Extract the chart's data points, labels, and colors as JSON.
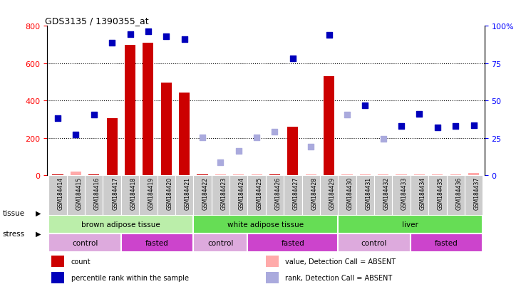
{
  "title": "GDS3135 / 1390355_at",
  "samples": [
    "GSM184414",
    "GSM184415",
    "GSM184416",
    "GSM184417",
    "GSM184418",
    "GSM184419",
    "GSM184420",
    "GSM184421",
    "GSM184422",
    "GSM184423",
    "GSM184424",
    "GSM184425",
    "GSM184426",
    "GSM184427",
    "GSM184428",
    "GSM184429",
    "GSM184430",
    "GSM184431",
    "GSM184432",
    "GSM184433",
    "GSM184434",
    "GSM184435",
    "GSM184436",
    "GSM184437"
  ],
  "count": [
    5,
    20,
    5,
    305,
    700,
    710,
    495,
    445,
    5,
    5,
    5,
    5,
    5,
    260,
    5,
    530,
    5,
    5,
    5,
    5,
    5,
    5,
    5,
    15
  ],
  "count_absent": [
    false,
    true,
    false,
    false,
    false,
    false,
    false,
    false,
    false,
    true,
    true,
    true,
    false,
    false,
    true,
    false,
    true,
    true,
    true,
    true,
    true,
    true,
    true,
    true
  ],
  "rank": [
    305,
    220,
    325,
    710,
    755,
    770,
    745,
    730,
    205,
    70,
    130,
    205,
    235,
    625,
    155,
    750,
    325,
    375,
    195,
    265,
    330,
    255,
    265,
    270
  ],
  "rank_absent": [
    false,
    false,
    false,
    false,
    false,
    false,
    false,
    false,
    true,
    true,
    true,
    true,
    true,
    false,
    true,
    false,
    true,
    false,
    true,
    false,
    false,
    false,
    false,
    false
  ],
  "ylim_left": [
    0,
    800
  ],
  "ylim_right": [
    0,
    100
  ],
  "yticks_left": [
    0,
    200,
    400,
    600,
    800
  ],
  "yticks_right": [
    0,
    25,
    50,
    75,
    100
  ],
  "ytick_labels_right": [
    "0",
    "25",
    "50",
    "75",
    "100%"
  ],
  "bar_color": "#cc0000",
  "bar_absent_color": "#ffaaaa",
  "rank_color": "#0000bb",
  "rank_absent_color": "#aaaadd",
  "tissue_groups": [
    {
      "label": "brown adipose tissue",
      "start": 0,
      "end": 7,
      "color": "#bbeeaa"
    },
    {
      "label": "white adipose tissue",
      "start": 8,
      "end": 15,
      "color": "#77dd66"
    },
    {
      "label": "liver",
      "start": 16,
      "end": 23,
      "color": "#77dd66"
    }
  ],
  "stress_groups": [
    {
      "label": "control",
      "start": 0,
      "end": 3,
      "color": "#ddaadd"
    },
    {
      "label": "fasted",
      "start": 4,
      "end": 7,
      "color": "#cc44cc"
    },
    {
      "label": "control",
      "start": 8,
      "end": 10,
      "color": "#ddaadd"
    },
    {
      "label": "fasted",
      "start": 11,
      "end": 15,
      "color": "#cc44cc"
    },
    {
      "label": "control",
      "start": 16,
      "end": 19,
      "color": "#ddaadd"
    },
    {
      "label": "fasted",
      "start": 20,
      "end": 23,
      "color": "#cc44cc"
    }
  ],
  "legend_items": [
    {
      "label": "count",
      "color": "#cc0000"
    },
    {
      "label": "percentile rank within the sample",
      "color": "#0000bb"
    },
    {
      "label": "value, Detection Call = ABSENT",
      "color": "#ffaaaa"
    },
    {
      "label": "rank, Detection Call = ABSENT",
      "color": "#aaaadd"
    }
  ],
  "sample_bg": "#cccccc",
  "bg_color": "#ffffff",
  "plot_bg": "#ffffff"
}
